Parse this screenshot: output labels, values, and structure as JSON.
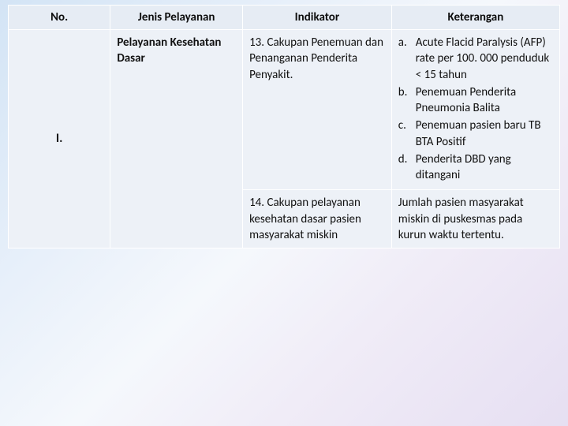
{
  "table": {
    "colors": {
      "header_bg": "#e6ecf4",
      "cell_bg": "#edf1f7",
      "border": "#ffffff",
      "text": "#111111"
    },
    "font": {
      "family": "Calibri",
      "header_size_pt": 15,
      "body_size_pt": 15,
      "header_weight": 700
    },
    "columns": [
      {
        "key": "no",
        "label": "No.",
        "width_pct": 18.5
      },
      {
        "key": "jenis",
        "label": "Jenis Pelayanan",
        "width_pct": 24
      },
      {
        "key": "indikator",
        "label": "Indikator",
        "width_pct": 27
      },
      {
        "key": "keterangan",
        "label": "Keterangan",
        "width_pct": 30.5
      }
    ],
    "section": {
      "no": "I.",
      "jenis": "Pelayanan Kesehatan Dasar",
      "rows": [
        {
          "indikator": "13. Cakupan Penemuan dan Penanganan Penderita Penyakit.",
          "keterangan_list": [
            {
              "marker": "a.",
              "text": "Acute Flacid Paralysis (AFP) rate per 100. 000 penduduk < 15 tahun"
            },
            {
              "marker": "b.",
              "text": "Penemuan Penderita Pneumonia Balita"
            },
            {
              "marker": "c.",
              "text": "Penemuan pasien baru TB BTA Positif"
            },
            {
              "marker": "d.",
              "text": "Penderita DBD yang ditangani"
            }
          ]
        },
        {
          "indikator": "14. Cakupan pelayanan kesehatan dasar pasien masyarakat miskin",
          "keterangan_text": "Jumlah pasien masyarakat miskin di puskesmas pada kurun waktu tertentu."
        }
      ]
    }
  }
}
